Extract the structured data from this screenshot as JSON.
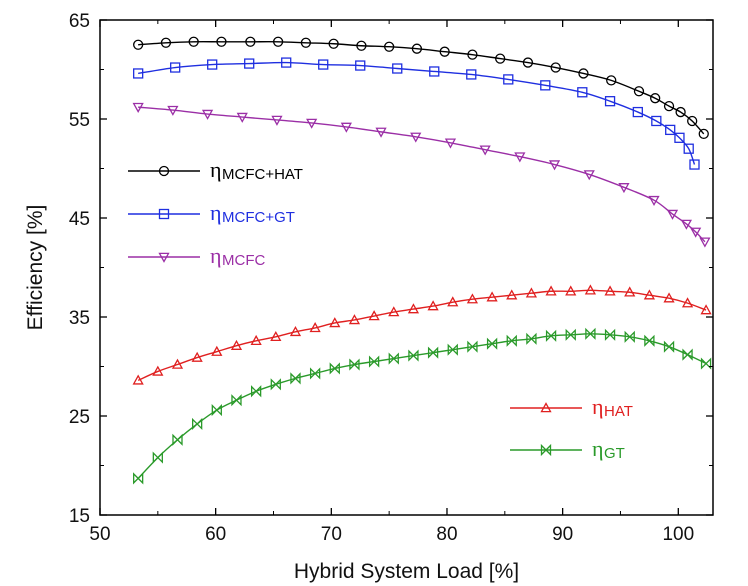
{
  "chart_data": {
    "type": "line",
    "xlabel": "Hybrid System Load [%]",
    "ylabel": "Efficiency [%]",
    "xlim": [
      50,
      103
    ],
    "ylim": [
      15,
      65
    ],
    "x_ticks": [
      "50",
      "60",
      "70",
      "80",
      "90",
      "100"
    ],
    "y_ticks": [
      "15",
      "25",
      "35",
      "45",
      "55",
      "65"
    ],
    "grid": false,
    "legend": [
      {
        "symbol": "η",
        "subscript": "MCFC+HAT",
        "series": 0
      },
      {
        "symbol": "η",
        "subscript": "MCFC+GT",
        "series": 1
      },
      {
        "symbol": "η",
        "subscript": "MCFC",
        "series": 2
      },
      {
        "symbol": "η",
        "subscript": "HAT",
        "series": 3
      },
      {
        "symbol": "η",
        "subscript": "GT",
        "series": 4
      }
    ],
    "series": [
      {
        "color": "#000000",
        "marker": "circle",
        "x": [
          53.3,
          55.7,
          58.1,
          60.5,
          63,
          65.4,
          67.8,
          70.2,
          72.6,
          75,
          77.4,
          79.8,
          82.2,
          84.6,
          87,
          89.4,
          91.8,
          94.2,
          96.6,
          98,
          99.2,
          100.2,
          101.2,
          102.2
        ],
        "y": [
          62.5,
          62.7,
          62.8,
          62.8,
          62.8,
          62.8,
          62.7,
          62.6,
          62.4,
          62.3,
          62.1,
          61.8,
          61.5,
          61.1,
          60.7,
          60.2,
          59.6,
          58.9,
          57.8,
          57.1,
          56.3,
          55.7,
          54.8,
          53.5
        ]
      },
      {
        "color": "#1f2fe0",
        "marker": "square",
        "x": [
          53.3,
          56.5,
          59.7,
          62.9,
          66.1,
          69.3,
          72.5,
          75.7,
          78.9,
          82.1,
          85.3,
          88.5,
          91.7,
          94.1,
          96.5,
          98.1,
          99.3,
          100.1,
          100.9,
          101.4
        ],
        "y": [
          59.6,
          60.2,
          60.5,
          60.6,
          60.7,
          60.5,
          60.4,
          60.1,
          59.8,
          59.5,
          59,
          58.4,
          57.7,
          56.8,
          55.7,
          54.8,
          53.9,
          53.1,
          52,
          50.4
        ]
      },
      {
        "color": "#9b2fa6",
        "marker": "triangle-down",
        "x": [
          53.3,
          56.3,
          59.3,
          62.3,
          65.3,
          68.3,
          71.3,
          74.3,
          77.3,
          80.3,
          83.3,
          86.3,
          89.3,
          92.3,
          95.3,
          97.9,
          99.5,
          100.7,
          101.5,
          102.3
        ],
        "y": [
          56.2,
          55.9,
          55.5,
          55.2,
          54.9,
          54.6,
          54.2,
          53.7,
          53.2,
          52.6,
          51.9,
          51.2,
          50.4,
          49.4,
          48.1,
          46.8,
          45.4,
          44.4,
          43.6,
          42.6
        ]
      },
      {
        "color": "#e02020",
        "marker": "triangle-up",
        "x": [
          53.3,
          55,
          56.7,
          58.4,
          60.1,
          61.8,
          63.5,
          65.2,
          66.9,
          68.6,
          70.3,
          72,
          73.7,
          75.4,
          77.1,
          78.8,
          80.5,
          82.2,
          83.9,
          85.6,
          87.3,
          89,
          90.7,
          92.4,
          94.1,
          95.8,
          97.5,
          99.2,
          100.8,
          102.4
        ],
        "y": [
          28.6,
          29.5,
          30.2,
          30.9,
          31.5,
          32.1,
          32.6,
          33,
          33.5,
          33.9,
          34.4,
          34.7,
          35.1,
          35.5,
          35.8,
          36.1,
          36.5,
          36.8,
          37,
          37.2,
          37.4,
          37.6,
          37.6,
          37.7,
          37.6,
          37.5,
          37.2,
          36.9,
          36.4,
          35.7
        ]
      },
      {
        "color": "#2a9a2a",
        "marker": "bowtie",
        "x": [
          53.3,
          55,
          56.7,
          58.4,
          60.1,
          61.8,
          63.5,
          65.2,
          66.9,
          68.6,
          70.3,
          72,
          73.7,
          75.4,
          77.1,
          78.8,
          80.5,
          82.2,
          83.9,
          85.6,
          87.3,
          89,
          90.7,
          92.4,
          94.1,
          95.8,
          97.5,
          99.2,
          100.8,
          102.4
        ],
        "y": [
          18.7,
          20.8,
          22.6,
          24.2,
          25.6,
          26.6,
          27.5,
          28.2,
          28.8,
          29.3,
          29.8,
          30.2,
          30.5,
          30.8,
          31.1,
          31.4,
          31.7,
          32,
          32.3,
          32.6,
          32.8,
          33.1,
          33.2,
          33.3,
          33.2,
          33,
          32.6,
          32,
          31.2,
          30.3
        ]
      }
    ]
  }
}
